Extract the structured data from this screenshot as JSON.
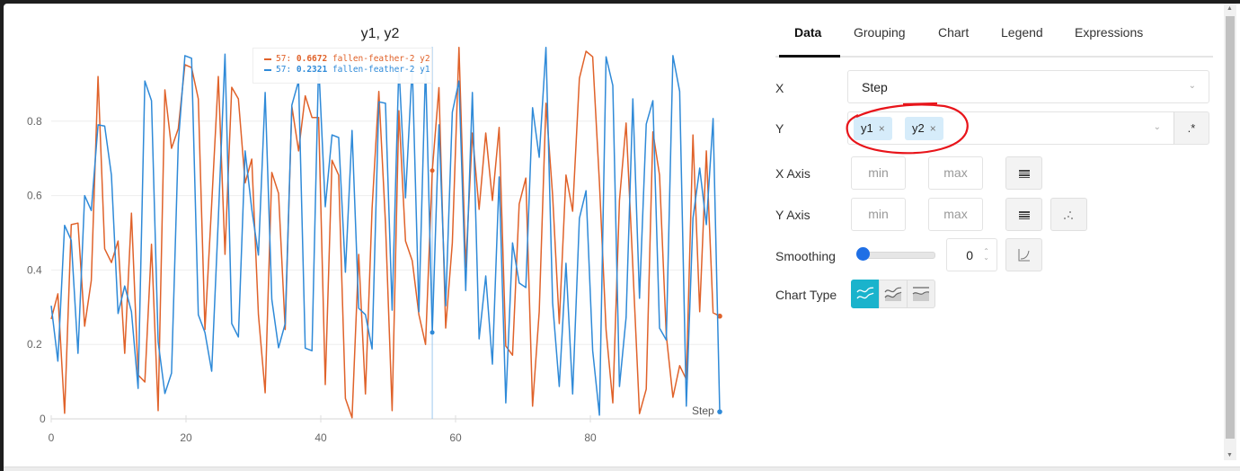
{
  "chart": {
    "title": "y1, y2",
    "tooltip": {
      "rows": [
        {
          "step_prefix": "57: ",
          "value": "0.6672",
          "label": " fallen-feather-2 y2",
          "color": "#e0622a"
        },
        {
          "step_prefix": "57: ",
          "value": "0.2321",
          "label": " fallen-feather-2 y1",
          "color": "#2f8ad8"
        }
      ]
    },
    "x_axis_label": "Step",
    "hover_step": 57
  },
  "chart_data": {
    "type": "line",
    "title": "y1, y2",
    "xlabel": "Step",
    "ylabel": "",
    "x_ticks": [
      0,
      20,
      40,
      60,
      80
    ],
    "y_ticks": [
      0,
      0.2,
      0.4,
      0.6,
      0.8
    ],
    "xlim": [
      0,
      100
    ],
    "ylim": [
      0,
      1
    ],
    "grid": true,
    "series": [
      {
        "name": "fallen-feather-2 y1",
        "color": "#2f8ad8",
        "values": [
          0.304,
          0.155,
          0.52,
          0.48,
          0.176,
          0.6,
          0.56,
          0.79,
          0.787,
          0.655,
          0.283,
          0.357,
          0.288,
          0.082,
          0.908,
          0.855,
          0.207,
          0.068,
          0.123,
          0.74,
          0.976,
          0.969,
          0.28,
          0.232,
          0.128,
          0.539,
          0.98,
          0.256,
          0.22,
          0.72,
          0.563,
          0.44,
          0.877,
          0.321,
          0.191,
          0.256,
          0.843,
          0.908,
          0.19,
          0.183,
          0.957,
          0.57,
          0.763,
          0.756,
          0.394,
          0.775,
          0.297,
          0.28,
          0.188,
          0.852,
          0.848,
          0.292,
          0.95,
          0.594,
          0.95,
          0.288,
          0.95,
          0.2321,
          0.79,
          0.304,
          0.824,
          0.908,
          0.345,
          0.877,
          0.215,
          0.384,
          0.147,
          0.65,
          0.043,
          0.473,
          0.365,
          0.353,
          0.836,
          0.703,
          0.998,
          0.312,
          0.087,
          0.418,
          0.067,
          0.539,
          0.613,
          0.183,
          0.01,
          0.973,
          0.896,
          0.087,
          0.273,
          0.86,
          0.324,
          0.792,
          0.855,
          0.244,
          0.212,
          0.976,
          0.88,
          0.034,
          0.539,
          0.674,
          0.522,
          0.807,
          0.019
        ]
      },
      {
        "name": "fallen-feather-2 y2",
        "color": "#e0622a",
        "values": [
          0.268,
          0.336,
          0.015,
          0.522,
          0.526,
          0.249,
          0.372,
          0.92,
          0.457,
          0.42,
          0.478,
          0.176,
          0.553,
          0.118,
          0.099,
          0.469,
          0.022,
          0.884,
          0.727,
          0.78,
          0.952,
          0.944,
          0.86,
          0.24,
          0.578,
          0.92,
          0.442,
          0.891,
          0.86,
          0.634,
          0.698,
          0.28,
          0.07,
          0.662,
          0.606,
          0.24,
          0.84,
          0.72,
          0.868,
          0.81,
          0.81,
          0.092,
          0.695,
          0.655,
          0.055,
          0.003,
          0.442,
          0.067,
          0.566,
          0.88,
          0.526,
          0.022,
          0.828,
          0.478,
          0.425,
          0.28,
          0.2,
          0.6672,
          0.89,
          0.244,
          0.473,
          0.998,
          0.408,
          0.768,
          0.563,
          0.768,
          0.587,
          0.783,
          0.196,
          0.171,
          0.577,
          0.647,
          0.034,
          0.288,
          0.848,
          0.601,
          0.256,
          0.655,
          0.558,
          0.915,
          0.988,
          0.973,
          0.635,
          0.239,
          0.043,
          0.587,
          0.795,
          0.408,
          0.014,
          0.08,
          0.771,
          0.655,
          0.225,
          0.058,
          0.143,
          0.106,
          0.763,
          0.288,
          0.72,
          0.285,
          0.276
        ]
      }
    ]
  },
  "side_panel": {
    "tabs": [
      {
        "label": "Data",
        "active": true
      },
      {
        "label": "Grouping",
        "active": false
      },
      {
        "label": "Chart",
        "active": false
      },
      {
        "label": "Legend",
        "active": false
      },
      {
        "label": "Expressions",
        "active": false
      }
    ],
    "x_label": "X",
    "x_value": "Step",
    "y_label": "Y",
    "y_chips": [
      "y1",
      "y2"
    ],
    "chip_remove": "×",
    "regex_button": ".*",
    "x_axis_label": "X Axis",
    "y_axis_label": "Y Axis",
    "min_placeholder": "min",
    "max_placeholder": "max",
    "smoothing_label": "Smoothing",
    "smoothing_value": "0",
    "chart_type_label": "Chart Type",
    "accent_color": "#1ab3cc"
  }
}
